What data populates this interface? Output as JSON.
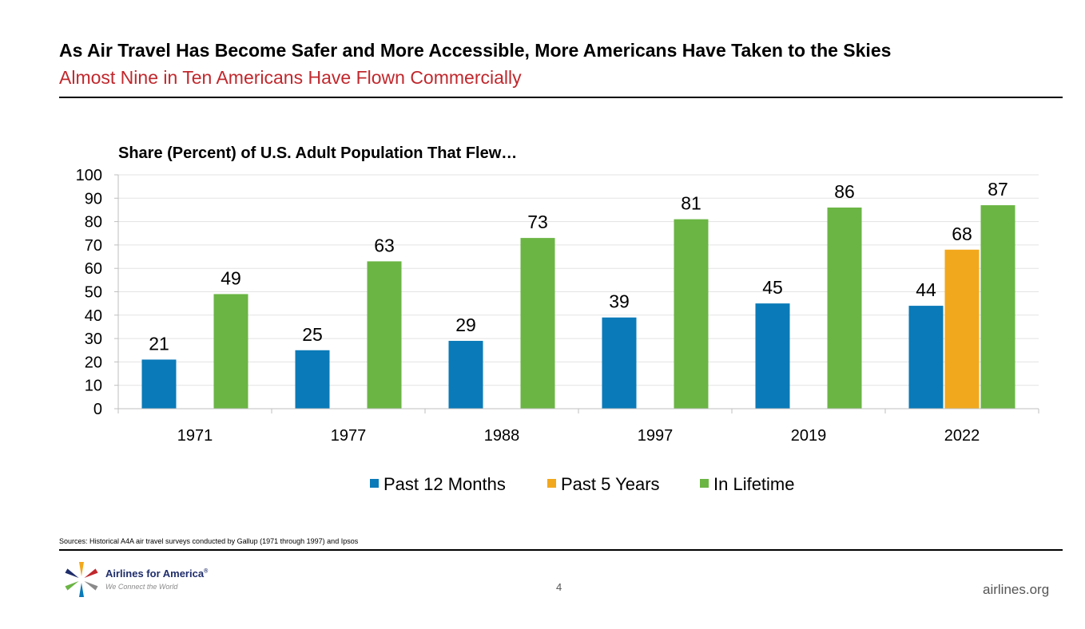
{
  "header": {
    "title": "As Air Travel Has Become Safer and More Accessible, More Americans Have Taken to the Skies",
    "subtitle": "Almost Nine in Ten Americans Have Flown Commercially"
  },
  "chart_data": {
    "type": "bar",
    "title": "Share (Percent) of U.S. Adult Population That Flew…",
    "categories": [
      "1971",
      "1977",
      "1988",
      "1997",
      "2019",
      "2022"
    ],
    "series": [
      {
        "name": "Past 12 Months",
        "color": "#0a7ab8",
        "values": [
          21,
          25,
          29,
          39,
          45,
          44
        ]
      },
      {
        "name": "Past 5 Years",
        "color": "#f2a81d",
        "values": [
          null,
          null,
          null,
          null,
          null,
          68
        ]
      },
      {
        "name": "In Lifetime",
        "color": "#6bb544",
        "values": [
          49,
          63,
          73,
          81,
          86,
          87
        ]
      }
    ],
    "ylim": [
      0,
      100
    ],
    "yticks": [
      0,
      10,
      20,
      30,
      40,
      50,
      60,
      70,
      80,
      90,
      100
    ],
    "grid": true,
    "legend": "bottom-center",
    "xlabel": "",
    "ylabel": ""
  },
  "footer": {
    "source": "Sources: Historical A4A air travel surveys conducted by Gallup (1971 through 1997) and Ipsos",
    "logo_name": "Airlines for America",
    "logo_registered": "®",
    "logo_tagline": "We Connect the World",
    "page_number": "4",
    "website": "airlines.org"
  }
}
